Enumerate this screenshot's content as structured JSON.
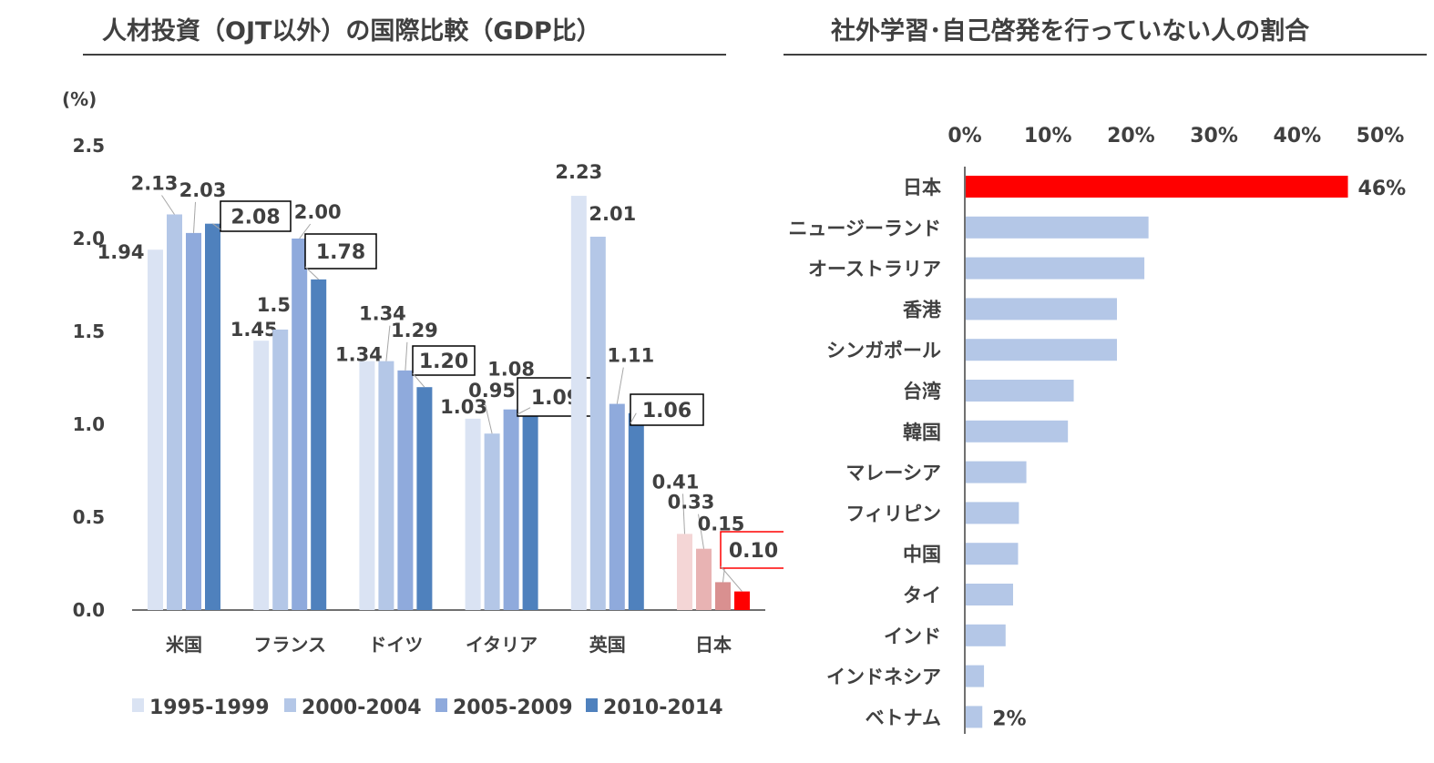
{
  "left": {
    "title": "人材投資（OJT以外）の国際比較（GDP比）",
    "chart_data": {
      "type": "bar",
      "title": "人材投資（OJT以外）の国際比較（GDP比）",
      "unit_label": "(%)",
      "ylim": [
        0,
        2.5
      ],
      "yticks": [
        "0.0",
        "0.5",
        "1.0",
        "1.5",
        "2.0",
        "2.5"
      ],
      "categories": [
        "米国",
        "フランス",
        "ドイツ",
        "イタリア",
        "英国",
        "日本"
      ],
      "series": [
        {
          "name": "1995-1999",
          "values": [
            1.94,
            1.45,
            1.34,
            1.03,
            2.23,
            0.41
          ],
          "labels": [
            "1.94",
            "1.45",
            "1.34",
            "1.03",
            "2.23",
            "0.41"
          ]
        },
        {
          "name": "2000-2004",
          "values": [
            2.13,
            1.51,
            1.34,
            0.95,
            2.01,
            0.33
          ],
          "labels": [
            "2.13",
            "1.51",
            "1.34",
            "0.95",
            "2.01",
            "0.33"
          ]
        },
        {
          "name": "2005-2009",
          "values": [
            2.03,
            2.0,
            1.29,
            1.08,
            1.11,
            0.15
          ],
          "labels": [
            "2.03",
            "2.00",
            "1.29",
            "1.08",
            "1.11",
            "0.15"
          ]
        },
        {
          "name": "2010-2014",
          "values": [
            2.08,
            1.78,
            1.2,
            1.09,
            1.06,
            0.1
          ],
          "labels": [
            "2.08",
            "1.78",
            "1.20",
            "1.09",
            "1.06",
            "0.10"
          ]
        }
      ],
      "series_colors": [
        "#dae3f3",
        "#b4c7e7",
        "#8faadc",
        "#4f81bd"
      ],
      "highlight_category": "日本",
      "highlight_colors": [
        "#f4d6d6",
        "#e8b3b3",
        "#d99090",
        "#ff0000"
      ],
      "highlight_box_color": "#ff0000",
      "legend_position": "bottom",
      "grid": false
    }
  },
  "right": {
    "title": "社外学習･自己啓発を行っていない人の割合",
    "chart_data": {
      "type": "bar",
      "orientation": "horizontal",
      "title": "社外学習･自己啓発を行っていない人の割合",
      "xlim": [
        0,
        50
      ],
      "xticks": [
        "0%",
        "10%",
        "20%",
        "30%",
        "40%",
        "50%"
      ],
      "categories": [
        "日本",
        "ニュージーランド",
        "オーストラリア",
        "香港",
        "シンガポール",
        "台湾",
        "韓国",
        "マレーシア",
        "フィリピン",
        "中国",
        "タイ",
        "インド",
        "インドネシア",
        "ベトナム"
      ],
      "values": [
        46,
        22,
        21.5,
        18.2,
        18.2,
        13,
        12.3,
        7.3,
        6.4,
        6.3,
        5.7,
        4.8,
        2.2,
        2
      ],
      "value_labels": {
        "日本": "46%",
        "ベトナム": "2%"
      },
      "bar_color": "#b4c7e7",
      "highlight_category": "日本",
      "highlight_color": "#ff0000",
      "legend_position": "none",
      "grid": false
    }
  }
}
